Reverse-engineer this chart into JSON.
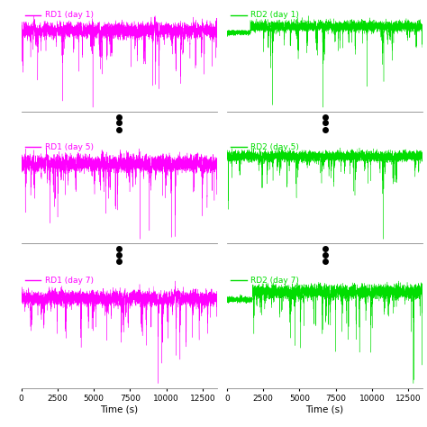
{
  "panels": [
    {
      "label": "RD1 (day 1)",
      "color": "#ff00ff",
      "col": 0,
      "row": 0,
      "style": "rd1"
    },
    {
      "label": "RD2 (day 1)",
      "color": "#00dd00",
      "col": 1,
      "row": 0,
      "style": "rd2_day1"
    },
    {
      "label": "RD1 (day 5)",
      "color": "#ff00ff",
      "col": 0,
      "row": 1,
      "style": "rd1"
    },
    {
      "label": "RD2 (day 5)",
      "color": "#00dd00",
      "col": 1,
      "row": 1,
      "style": "rd2_day5"
    },
    {
      "label": "RD1 (day 7)",
      "color": "#ff00ff",
      "col": 0,
      "row": 2,
      "style": "rd1"
    },
    {
      "label": "RD2 (day 7)",
      "color": "#00dd00",
      "col": 1,
      "row": 2,
      "style": "rd2_day7"
    }
  ],
  "x_max": 13500,
  "x_ticks": [
    0,
    2500,
    5000,
    7500,
    10000,
    12500
  ],
  "xlabel": "Time (s)",
  "background_color": "#ffffff",
  "seeds": [
    10,
    20,
    30,
    40,
    50,
    60
  ]
}
